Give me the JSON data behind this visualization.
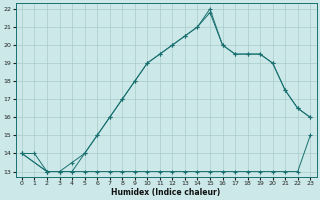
{
  "xlabel": "Humidex (Indice chaleur)",
  "background_color": "#cce8e8",
  "grid_color": "#aacccc",
  "line_color": "#1a7070",
  "xlim": [
    -0.5,
    23.5
  ],
  "ylim": [
    12.7,
    22.3
  ],
  "xticks": [
    0,
    1,
    2,
    3,
    4,
    5,
    6,
    7,
    8,
    9,
    10,
    11,
    12,
    13,
    14,
    15,
    16,
    17,
    18,
    19,
    20,
    21,
    22,
    23
  ],
  "yticks": [
    13,
    14,
    15,
    16,
    17,
    18,
    19,
    20,
    21,
    22
  ],
  "line1_x": [
    0,
    1,
    2,
    3,
    4,
    5,
    6,
    7,
    8,
    9,
    10,
    11,
    12,
    13,
    14,
    15,
    16,
    17,
    18,
    19,
    20,
    21,
    22,
    23
  ],
  "line1_y": [
    14,
    14,
    13,
    13,
    13,
    13,
    13,
    13,
    13,
    13,
    13,
    13,
    13,
    13,
    13,
    13,
    13,
    13,
    13,
    13,
    13,
    13,
    13,
    15
  ],
  "line2_x": [
    0,
    2,
    3,
    4,
    5,
    6,
    7,
    8,
    9,
    10,
    11,
    12,
    13,
    14,
    15,
    16,
    17,
    18,
    19,
    20,
    21,
    22,
    23
  ],
  "line2_y": [
    14,
    13,
    13,
    13,
    14,
    15,
    16,
    17,
    18,
    19,
    19.5,
    20,
    20.5,
    21,
    22,
    20,
    19.5,
    19.5,
    19.5,
    19,
    17.5,
    16.5,
    16
  ],
  "line3_x": [
    0,
    2,
    3,
    4,
    5,
    6,
    7,
    8,
    9,
    10,
    11,
    12,
    13,
    14,
    15,
    16,
    17,
    18,
    19,
    20,
    21,
    22,
    23
  ],
  "line3_y": [
    14,
    13,
    13,
    13.5,
    14,
    15,
    16,
    17,
    18,
    19,
    19.5,
    20,
    20.5,
    21,
    21.8,
    20,
    19.5,
    19.5,
    19.5,
    19,
    17.5,
    16.5,
    16
  ]
}
